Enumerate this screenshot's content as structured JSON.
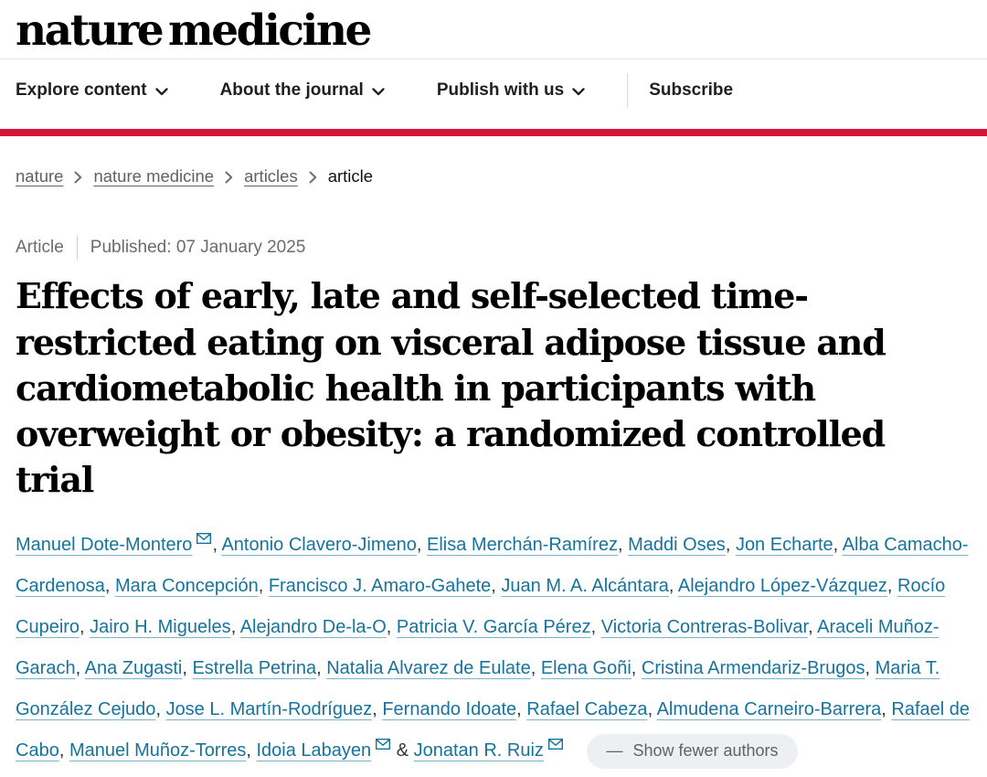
{
  "brand": {
    "logo": "nature medicine",
    "accent_red": "#d6143b",
    "link_blue": "#16739c"
  },
  "nav": {
    "items": [
      {
        "label": "Explore content",
        "has_dropdown": true
      },
      {
        "label": "About the journal",
        "has_dropdown": true
      },
      {
        "label": "Publish with us",
        "has_dropdown": true
      }
    ],
    "subscribe_label": "Subscribe"
  },
  "breadcrumb": {
    "links": [
      "nature",
      "nature medicine",
      "articles"
    ],
    "current": "article"
  },
  "article_meta": {
    "type_label": "Article",
    "published_label": "Published:",
    "published_date": "07 January 2025"
  },
  "title": "Effects of early, late and self-selected time-restricted eating on visceral adipose tissue and cardiometabolic health in participants with overweight or obesity: a randomized controlled trial",
  "authors": {
    "list": [
      {
        "name": "Manuel Dote-Montero",
        "email": true
      },
      {
        "name": "Antonio Clavero-Jimeno",
        "email": false
      },
      {
        "name": "Elisa Merchán-Ramírez",
        "email": false
      },
      {
        "name": "Maddi Oses",
        "email": false
      },
      {
        "name": "Jon Echarte",
        "email": false
      },
      {
        "name": "Alba Camacho-Cardenosa",
        "email": false
      },
      {
        "name": "Mara Concepción",
        "email": false
      },
      {
        "name": "Francisco J. Amaro-Gahete",
        "email": false
      },
      {
        "name": "Juan M. A. Alcántara",
        "email": false
      },
      {
        "name": "Alejandro López-Vázquez",
        "email": false
      },
      {
        "name": "Rocío Cupeiro",
        "email": false
      },
      {
        "name": "Jairo H. Migueles",
        "email": false
      },
      {
        "name": "Alejandro De-la-O",
        "email": false
      },
      {
        "name": "Patricia V. García Pérez",
        "email": false
      },
      {
        "name": "Victoria Contreras-Bolivar",
        "email": false
      },
      {
        "name": "Araceli Muñoz-Garach",
        "email": false
      },
      {
        "name": "Ana Zugasti",
        "email": false
      },
      {
        "name": "Estrella Petrina",
        "email": false
      },
      {
        "name": "Natalia Alvarez de Eulate",
        "email": false
      },
      {
        "name": "Elena Goñi",
        "email": false
      },
      {
        "name": "Cristina Armendariz-Brugos",
        "email": false
      },
      {
        "name": "Maria T. González Cejudo",
        "email": false
      },
      {
        "name": "Jose L. Martín-Rodríguez",
        "email": false
      },
      {
        "name": "Fernando Idoate",
        "email": false
      },
      {
        "name": "Rafael Cabeza",
        "email": false
      },
      {
        "name": "Almudena Carneiro-Barrera",
        "email": false
      },
      {
        "name": "Rafael de Cabo",
        "email": false
      },
      {
        "name": "Manuel Muñoz-Torres",
        "email": false
      },
      {
        "name": "Idoia Labayen",
        "email": true
      },
      {
        "name": "Jonatan R. Ruiz",
        "email": true
      }
    ],
    "last_separator": "&",
    "show_fewer_dash": "—",
    "show_fewer_label": "Show fewer authors"
  }
}
